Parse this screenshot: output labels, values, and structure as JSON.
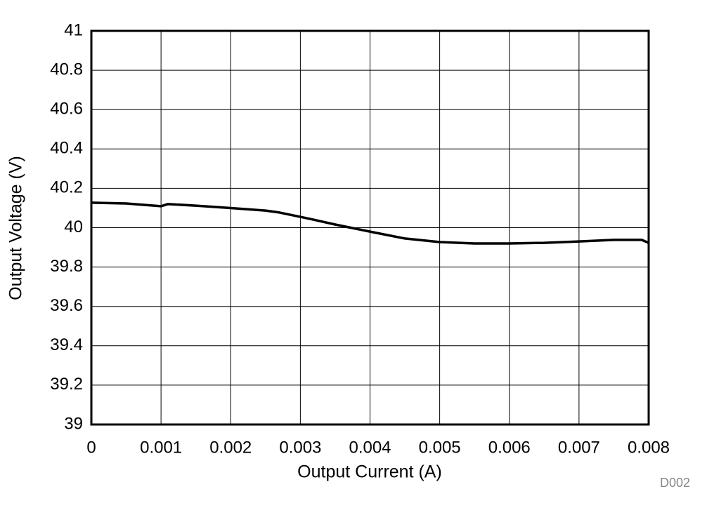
{
  "chart_data": {
    "type": "line",
    "x_label": "Output Current (A)",
    "y_label": "Output Voltage (V)",
    "annotation": "D002",
    "x": [
      0,
      0.0005,
      0.001,
      0.0011,
      0.0015,
      0.002,
      0.0025,
      0.0027,
      0.003,
      0.0032,
      0.0035,
      0.004,
      0.0045,
      0.005,
      0.0055,
      0.006,
      0.0065,
      0.007,
      0.0075,
      0.0079,
      0.008
    ],
    "series": [
      {
        "color": "#000000",
        "values": [
          40.127,
          40.123,
          40.109,
          40.12,
          40.112,
          40.1,
          40.087,
          40.077,
          40.055,
          40.04,
          40.016,
          39.98,
          39.945,
          39.927,
          39.92,
          39.92,
          39.923,
          39.93,
          39.938,
          39.938,
          39.923
        ]
      }
    ],
    "xlim": [
      0,
      0.008
    ],
    "xticks": [
      0,
      0.001,
      0.002,
      0.003,
      0.004,
      0.005,
      0.006,
      0.007,
      0.008
    ],
    "ylim": [
      39,
      41
    ],
    "yticks": [
      39,
      39.2,
      39.4,
      39.6,
      39.8,
      40,
      40.2,
      40.4,
      40.6,
      40.8,
      41
    ],
    "grid": true
  }
}
